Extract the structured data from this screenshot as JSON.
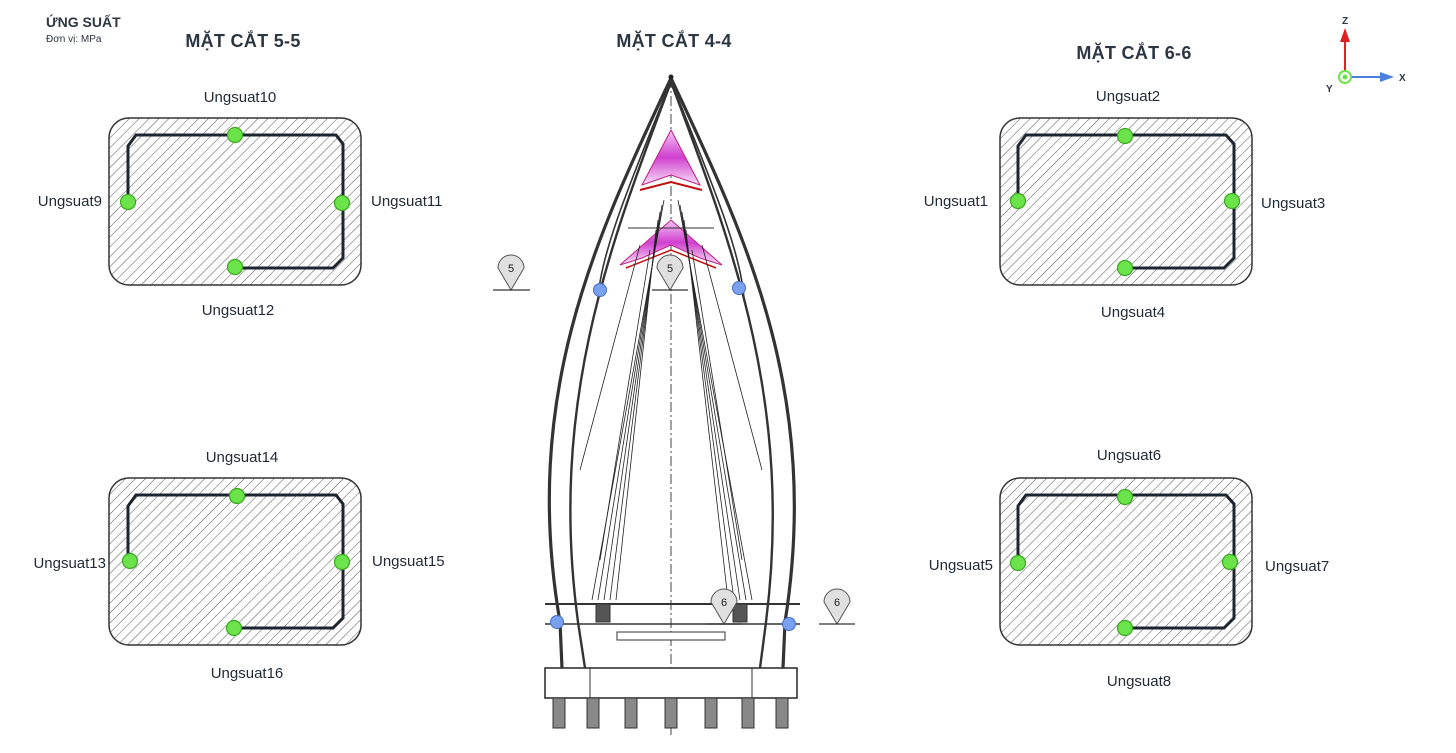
{
  "header": {
    "title": "ỨNG SUẤT",
    "unit": "Đơn vị: MPa"
  },
  "sections": {
    "left": {
      "title": "MẶT CẮT 5-5"
    },
    "center": {
      "title": "MẶT CẮT 4-4"
    },
    "right": {
      "title": "MẶT CẮT 6-6"
    }
  },
  "boxes": {
    "tl": {
      "top": "Ungsuat10",
      "left": "Ungsuat9",
      "right": "Ungsuat11",
      "bottom": "Ungsuat12"
    },
    "bl": {
      "top": "Ungsuat14",
      "left": "Ungsuat13",
      "right": "Ungsuat15",
      "bottom": "Ungsuat16"
    },
    "tr": {
      "top": "Ungsuat2",
      "left": "Ungsuat1",
      "right": "Ungsuat3",
      "bottom": "Ungsuat4"
    },
    "br": {
      "top": "Ungsuat6",
      "left": "Ungsuat5",
      "right": "Ungsuat7",
      "bottom": "Ungsuat8"
    }
  },
  "section_markers": {
    "m5": "5",
    "m6": "6"
  },
  "axes": {
    "z": "Z",
    "x": "X",
    "y": "Y"
  },
  "colors": {
    "sensor": "#6be34a",
    "sensor_stroke": "#3aa81f",
    "blue_point": "#7aa0f0",
    "axis_z": "#e02020",
    "axis_x": "#4a7fe0",
    "magenta": "#d040d0"
  }
}
